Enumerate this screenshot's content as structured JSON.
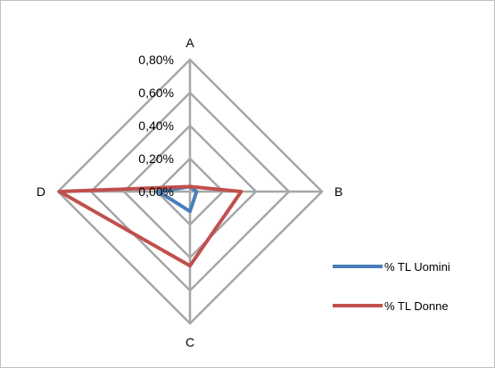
{
  "chart_data": {
    "type": "radar",
    "categories": [
      "A",
      "B",
      "C",
      "D"
    ],
    "axis": {
      "min": 0,
      "max": 0.008,
      "step": 0.002,
      "tick_labels": [
        "0,00%",
        "0,20%",
        "0,40%",
        "0,60%",
        "0,80%"
      ]
    },
    "series": [
      {
        "name": "% TL Uomini",
        "values": [
          0.0003,
          0.0004,
          0.0012,
          0.0019
        ],
        "color": "#4a7ebb"
      },
      {
        "name": "% TL Donne",
        "values": [
          0.0003,
          0.0031,
          0.0045,
          0.0079
        ],
        "color": "#c0504d"
      }
    ],
    "grid_color": "#a6a6a6",
    "legend_position": "right"
  }
}
